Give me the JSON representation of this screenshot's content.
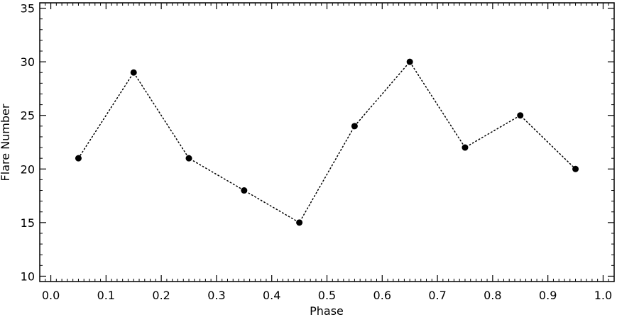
{
  "chart_data": {
    "type": "scatter",
    "xlabel": "Phase",
    "ylabel": "Flare Number",
    "xlim": [
      -0.02,
      1.02
    ],
    "ylim": [
      9.5,
      35.5
    ],
    "x_major_ticks": [
      0.0,
      0.1,
      0.2,
      0.3,
      0.4,
      0.5,
      0.6,
      0.7,
      0.8,
      0.9,
      1.0
    ],
    "x_tick_labels": [
      "0.0",
      "0.1",
      "0.2",
      "0.3",
      "0.4",
      "0.5",
      "0.6",
      "0.7",
      "0.8",
      "0.9",
      "1.0"
    ],
    "x_minor_step": 0.01,
    "y_major_ticks": [
      10,
      15,
      20,
      25,
      30,
      35
    ],
    "y_tick_labels": [
      "10",
      "15",
      "20",
      "25",
      "30",
      "35"
    ],
    "y_minor_step": 1,
    "grid": false,
    "line_style": "dotted",
    "marker": "filled-circle",
    "colors": {
      "line": "#000000",
      "marker": "#000000",
      "axes": "#000000",
      "background": "#ffffff"
    },
    "series": [
      {
        "x": [
          0.05,
          0.15,
          0.25,
          0.35,
          0.45,
          0.55,
          0.65,
          0.75,
          0.85,
          0.95
        ],
        "y": [
          21,
          29,
          21,
          18,
          15,
          24,
          30,
          22,
          25,
          20
        ]
      }
    ]
  }
}
